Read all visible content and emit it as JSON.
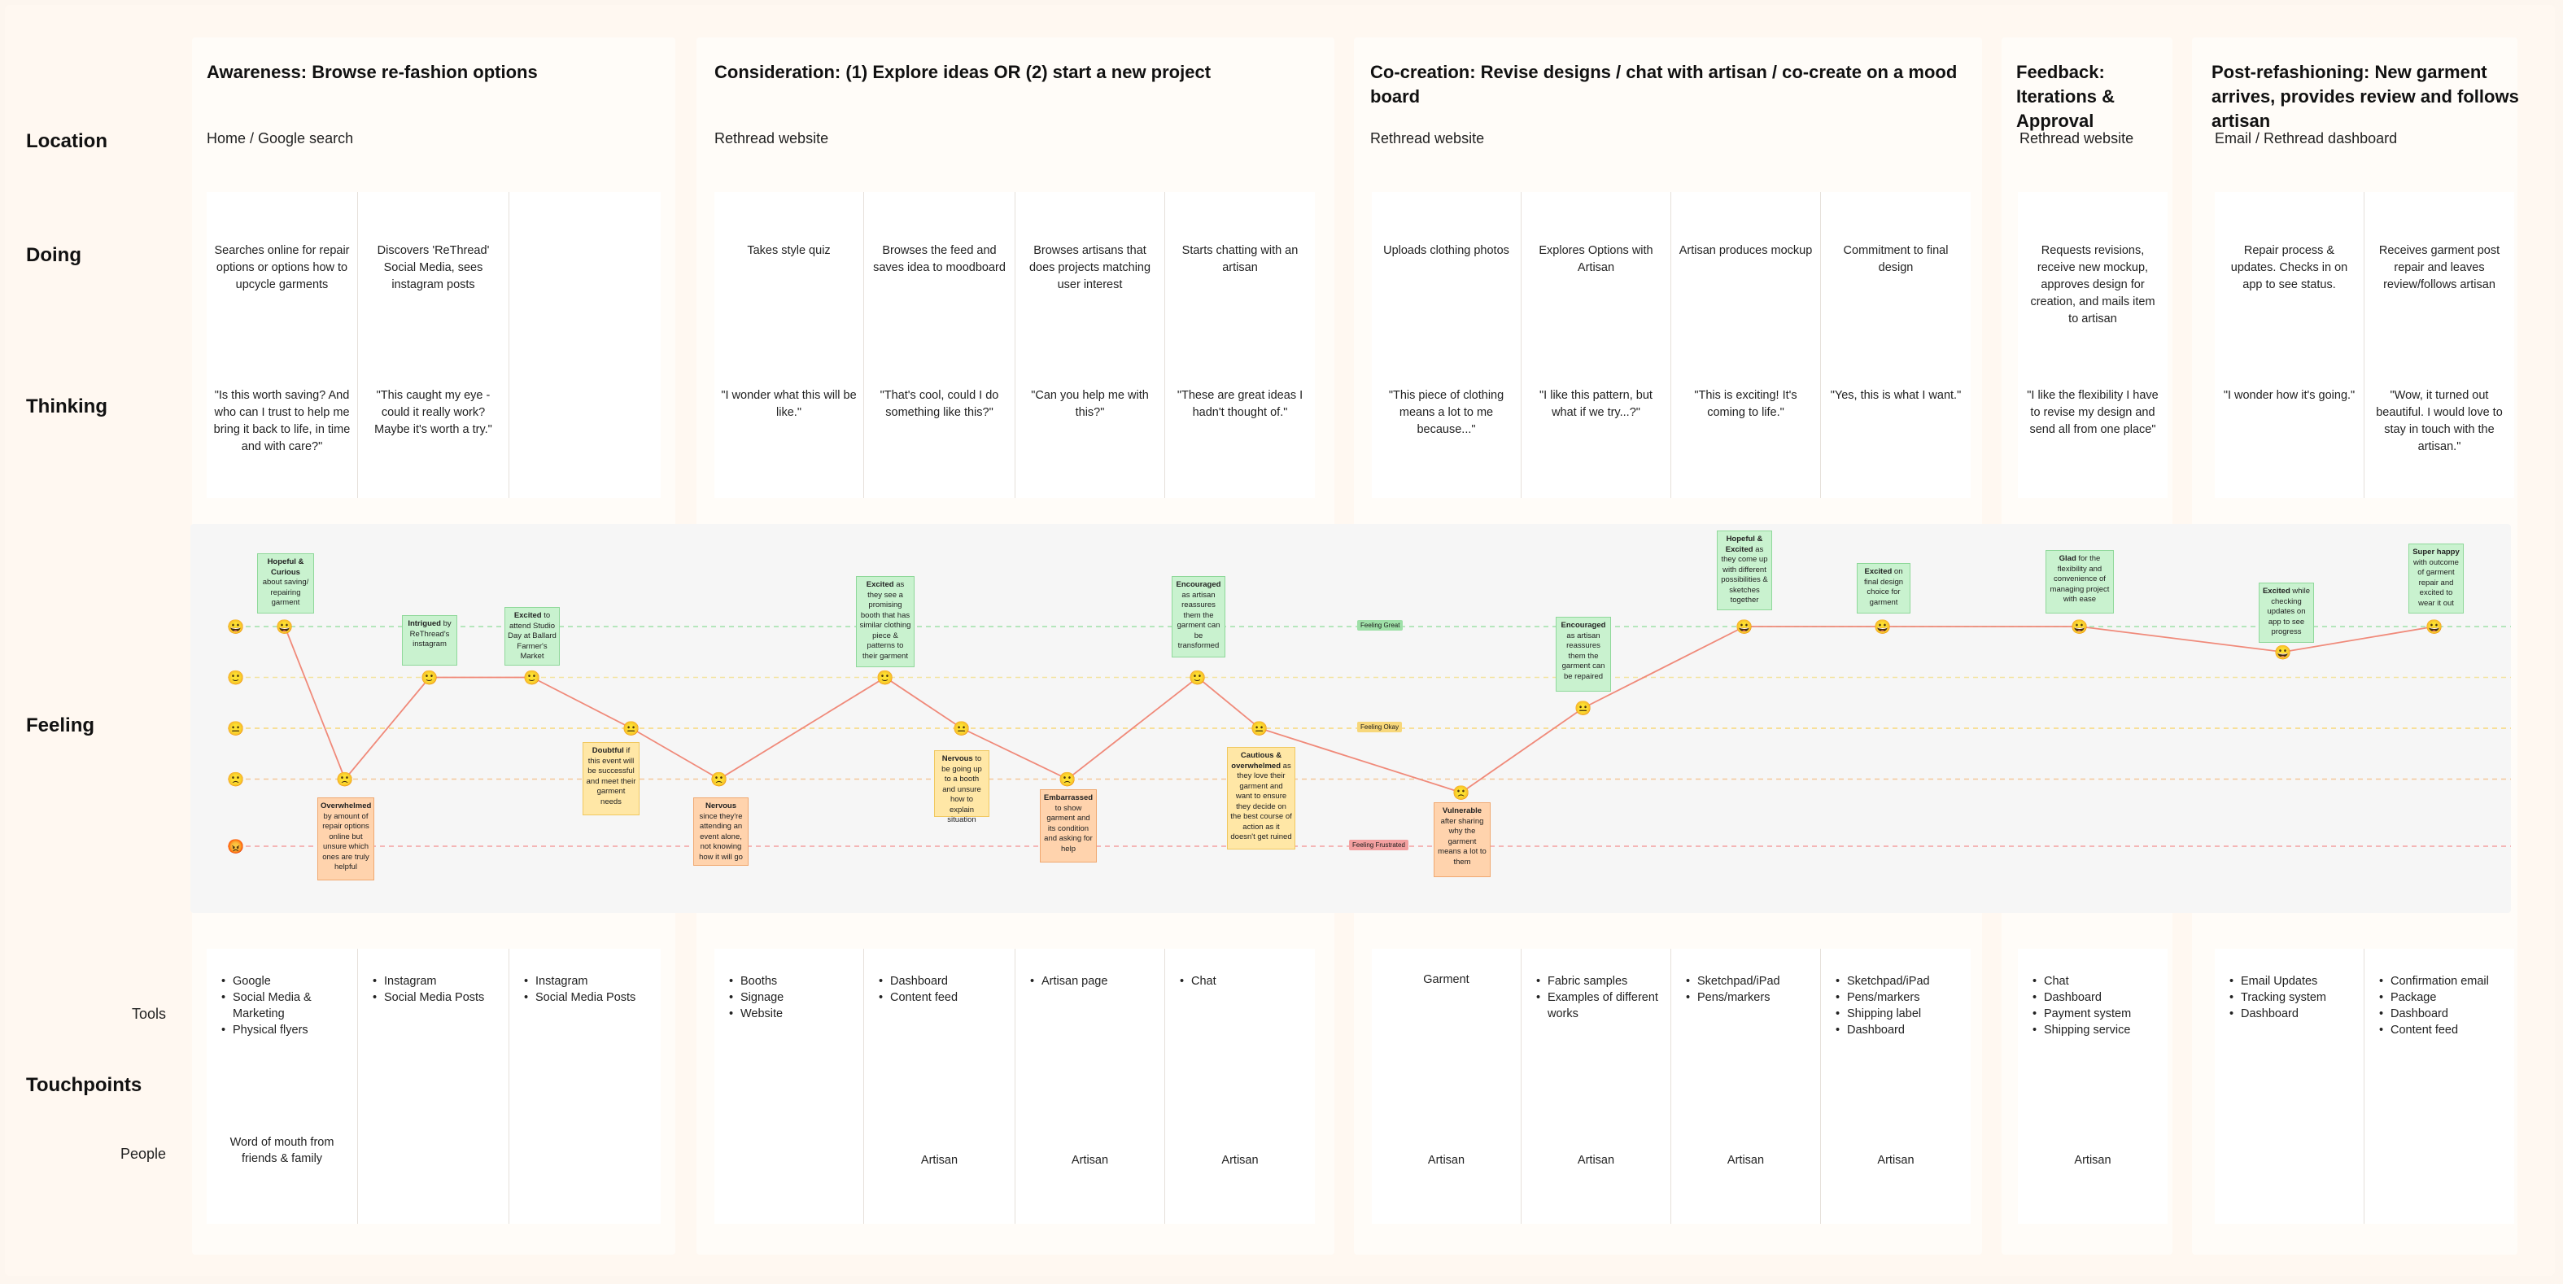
{
  "stages": [
    {
      "title": "Awareness: Browse re-fashion options",
      "location": "Home / Google search"
    },
    {
      "title": "Consideration: (1) Explore ideas OR (2) start a new project",
      "location": "Rethread website"
    },
    {
      "title": "Co-creation: Revise designs / chat with artisan / co-create on a mood board",
      "location": "Rethread website"
    },
    {
      "title": "Feedback: Iterations & Approval",
      "location": "Rethread website"
    },
    {
      "title": "Post-refashioning: New garment arrives, provides review and follows artisan",
      "location": "Email / Rethread dashboard"
    }
  ],
  "row_labels": {
    "location": "Location",
    "doing": "Doing",
    "thinking": "Thinking",
    "feeling": "Feeling",
    "touchpoints": "Touchpoints",
    "tools": "Tools",
    "people": "People"
  },
  "columns": [
    {
      "doing": "Searches online for repair options or options how to upcycle garments",
      "thinking": "\"Is this worth saving? And who can I trust to help me bring it back to life, in time and with care?\"",
      "tools": [
        "Google",
        "Social Media & Marketing",
        "Physical flyers"
      ],
      "people": "Word of mouth from friends & family"
    },
    {
      "doing": "Discovers 'ReThread' Social Media, sees instagram posts",
      "thinking": "\"This caught my eye - could it really work? Maybe it's worth a try.\"",
      "tools": [
        "Instagram",
        "Social Media Posts"
      ],
      "people": ""
    },
    {
      "doing": "",
      "thinking": "",
      "tools": [
        "Instagram",
        "Social Media Posts"
      ],
      "people": ""
    },
    {
      "doing": "Takes style quiz",
      "thinking": "\"I wonder what this will be like.\"",
      "tools": [
        "Booths",
        "Signage",
        "Website"
      ],
      "people": ""
    },
    {
      "doing": "Browses the feed and saves idea to moodboard",
      "thinking": "\"That's cool, could I do something like this?\"",
      "tools": [
        "Dashboard",
        "Content feed"
      ],
      "people": "Artisan"
    },
    {
      "doing": "Browses artisans that does projects matching user interest",
      "thinking": "\"Can you help me with this?\"",
      "tools": [
        "Artisan page"
      ],
      "people": "Artisan"
    },
    {
      "doing": "Starts chatting with an artisan",
      "thinking": "\"These are great ideas I hadn't thought of.\"",
      "tools": [
        "Chat"
      ],
      "people": "Artisan"
    },
    {
      "doing": "Uploads clothing photos",
      "thinking": "\"This piece of clothing means a lot to me because...\"",
      "tools_plain": "Garment",
      "tools": [],
      "people": "Artisan"
    },
    {
      "doing": "Explores Options with Artisan",
      "thinking": "\"I like this pattern, but what if we try...?\"",
      "tools": [
        "Fabric samples",
        "Examples of different works"
      ],
      "people": "Artisan"
    },
    {
      "doing": "Artisan produces mockup",
      "thinking": "\"This is exciting! It's coming to life.\"",
      "tools": [
        "Sketchpad/iPad",
        "Pens/markers"
      ],
      "people": "Artisan"
    },
    {
      "doing": "Commitment to final design",
      "thinking": "\"Yes, this is what I want.\"",
      "tools": [
        "Sketchpad/iPad",
        "Pens/markers",
        "Shipping label",
        "Dashboard"
      ],
      "people": "Artisan"
    },
    {
      "doing": "Requests revisions, receive new mockup, approves design for creation, and mails item to artisan",
      "thinking": "\"I like the flexibility I have to revise my design and send all from one place\"",
      "tools": [
        "Chat",
        "Dashboard",
        "Payment system",
        "Shipping service"
      ],
      "people": "Artisan"
    },
    {
      "doing": "Repair process & updates. Checks in on app to see status.",
      "thinking": "\"I wonder how it's going.\"",
      "tools": [
        "Email Updates",
        "Tracking system",
        "Dashboard"
      ],
      "people": ""
    },
    {
      "doing": "Receives garment post repair and leaves review/follows artisan",
      "thinking": "\"Wow, it turned out beautiful. I would love to stay in touch with the artisan.\"",
      "tools": [
        "Confirmation email",
        "Package",
        "Dashboard",
        "Content feed"
      ],
      "people": ""
    }
  ],
  "feeling_levels": [
    {
      "level": 5,
      "emoji": "😀",
      "tag": "Feeling Great",
      "color": "#9fe0a8"
    },
    {
      "level": 4,
      "emoji": "🙂",
      "tag": "",
      "color": "#f3e3a0"
    },
    {
      "level": 3,
      "emoji": "😐",
      "tag": "Feeling Okay",
      "color": "#f7d77a"
    },
    {
      "level": 2,
      "emoji": "🙁",
      "tag": "",
      "color": "#f4c79a"
    },
    {
      "level": 1,
      "emoji": "😡",
      "tag": "Feeling Frustrated",
      "color": "#f3a0a0"
    }
  ],
  "chart_data": {
    "type": "line",
    "title": "",
    "y_scale": "feeling level (1 = frustrated, 5 = great)",
    "series": [
      {
        "name": "",
        "values": [
          5,
          2,
          4,
          4,
          3,
          2,
          4,
          3,
          2,
          4,
          3,
          1.8,
          3.4,
          5,
          5,
          5,
          4.5,
          5
        ]
      }
    ]
  },
  "feeling_notes": [
    {
      "style": "g",
      "bold": "Hopeful & Curious",
      "text": "about saving/ repairing garment"
    },
    {
      "style": "o",
      "bold": "Overwhelmed",
      "text": "by amount of repair options online but unsure which ones are truly helpful"
    },
    {
      "style": "g",
      "bold": "Intrigued",
      "text": "by ReThread's instagram"
    },
    {
      "style": "g",
      "bold": "Excited",
      "text": "to attend Studio Day at Ballard Farmer's Market"
    },
    {
      "style": "y",
      "bold": "Doubtful",
      "text": "if this event will be successful and meet their garment needs"
    },
    {
      "style": "o",
      "bold": "Nervous",
      "text": "since they're attending an event alone, not knowing how it will go"
    },
    {
      "style": "g",
      "bold": "Excited",
      "text": "as they see a promising booth that has similar clothing piece & patterns to their garment"
    },
    {
      "style": "y",
      "bold": "Nervous",
      "text": "to be going up to a booth and unsure how to explain situation"
    },
    {
      "style": "o",
      "bold": "Embarrassed",
      "text": "to show garment and its condition and asking for help"
    },
    {
      "style": "g",
      "bold": "Encouraged",
      "text": "as artisan reassures them the garment can be transformed"
    },
    {
      "style": "y",
      "bold": "Cautious & overwhelmed",
      "text": "as they love their garment and want to ensure they decide on the best course of action as it doesn't get ruined"
    },
    {
      "style": "o",
      "bold": "Vulnerable",
      "text": "after sharing why the garment means a lot to them"
    },
    {
      "style": "g",
      "bold": "Encouraged",
      "text": "as artisan reassures them the garment can be repaired"
    },
    {
      "style": "g",
      "bold": "Hopeful & Excited",
      "text": "as they come up with different possibilities & sketches together"
    },
    {
      "style": "g",
      "bold": "Excited",
      "text": "on final design choice for garment"
    },
    {
      "style": "g",
      "bold": "Glad",
      "text": "for the flexibility and convenience of managing project with ease"
    },
    {
      "style": "g",
      "bold": "Excited",
      "text": "while checking updates on app to see progress"
    },
    {
      "style": "g",
      "bold": "Super happy",
      "text": "with outcome of garment repair and excited to wear it out"
    }
  ]
}
